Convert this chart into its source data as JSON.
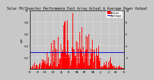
{
  "title": "Solar PV/Inverter Performance East Array Actual & Average Power Output",
  "title_fontsize": 3.5,
  "background_color": "#c8c8c8",
  "plot_bg_color": "#c8c8c8",
  "bar_color": "#ff0000",
  "avg_line_color": "#0000cc",
  "avg_value": 0.28,
  "ylim": [
    0,
    1.0
  ],
  "ylabel": "kW",
  "ylabel_fontsize": 3.0,
  "ytick_fontsize": 2.8,
  "xtick_fontsize": 2.5,
  "legend_fontsize": 2.8,
  "n_bars": 365,
  "grid_color": "#ffffff",
  "seed": 7
}
